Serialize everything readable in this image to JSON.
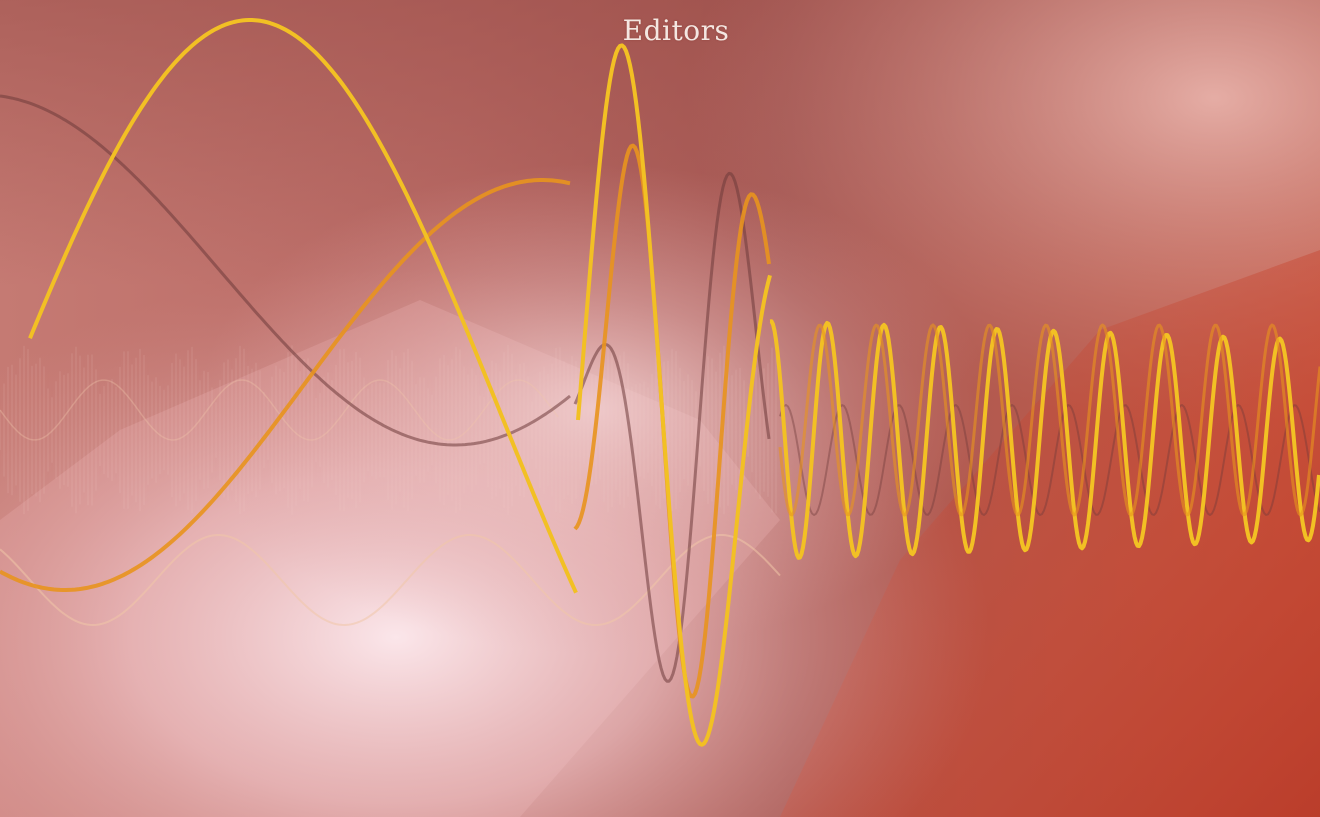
{
  "cover": {
    "heading": "Editors"
  },
  "palette": {
    "background_dark": "#a9554a",
    "background_light": "#f8dede",
    "background_right": "#c94a33",
    "wave_yellow": "#f2c024",
    "wave_orange": "#e8941e",
    "wave_dark": "#6e3a3a",
    "wave_pale": "#f0c7a8"
  },
  "icons": {
    "artwork": "oscilloscope-waveform-artwork"
  }
}
